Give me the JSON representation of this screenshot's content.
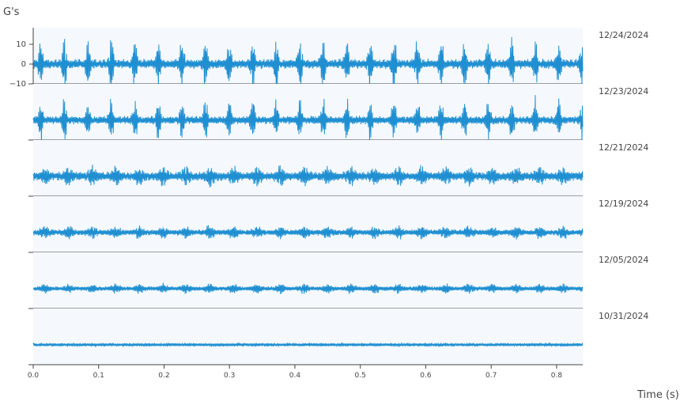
{
  "chart_data": {
    "type": "line",
    "ylabel": "G's",
    "xlabel": "Time (s)",
    "xlim": [
      0,
      0.84
    ],
    "x_ticks": [
      "0.0",
      "0.1",
      "0.2",
      "0.3",
      "0.4",
      "0.5",
      "0.6",
      "0.7",
      "0.8"
    ],
    "y_ticks_top_panel": [
      "10",
      "0",
      "−10"
    ],
    "ylim_top_panel": [
      -10,
      14
    ],
    "line_color": "#1f8fd1",
    "panel_background": "#f5f9fd",
    "grid": false,
    "series": [
      {
        "name": "12/24/2024",
        "amplitude_peak": 13,
        "burst_period_s": 0.036,
        "envelope": "impulsive"
      },
      {
        "name": "12/23/2024",
        "amplitude_peak": 11,
        "burst_period_s": 0.036,
        "envelope": "impulsive"
      },
      {
        "name": "12/21/2024",
        "amplitude_peak": 6,
        "burst_period_s": 0.036,
        "envelope": "modulated"
      },
      {
        "name": "12/19/2024",
        "amplitude_peak": 4,
        "burst_period_s": 0.036,
        "envelope": "modulated"
      },
      {
        "name": "12/05/2024",
        "amplitude_peak": 3,
        "burst_period_s": 0.036,
        "envelope": "modulated"
      },
      {
        "name": "10/31/2024",
        "amplitude_peak": 1.5,
        "burst_period_s": 0.036,
        "envelope": "noise"
      }
    ]
  }
}
